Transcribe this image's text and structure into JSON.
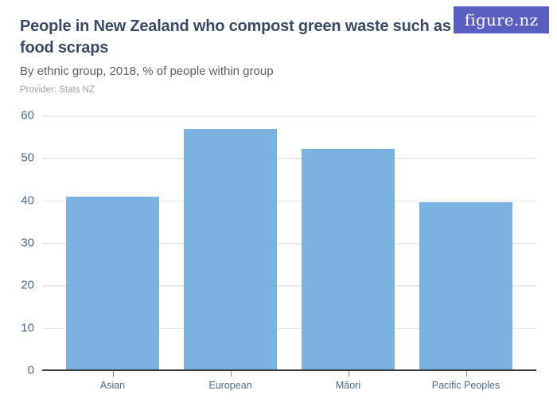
{
  "header": {
    "title": "People in New Zealand who compost green waste such as food scraps",
    "subtitle": "By ethnic group, 2018, % of people within group",
    "provider": "Provider: Stats NZ",
    "logo_text": "figure.nz"
  },
  "colors": {
    "bar": "#7cb2e1",
    "logo_bg": "#5a5ec1",
    "title": "#3b4a63",
    "subtitle": "#5f5f5f",
    "provider": "#a0a0a0",
    "axis_label": "#4a6a8c",
    "gridline": "#e9e9e9",
    "axis_line": "#3d3d3d"
  },
  "chart_data": {
    "type": "bar",
    "title": "People in New Zealand who compost green waste such as food scraps",
    "subtitle": "By ethnic group, 2018, % of people within group",
    "categories": [
      "Asian",
      "European",
      "Māori",
      "Pacific Peoples"
    ],
    "values": [
      40.9,
      56.9,
      52.1,
      39.6
    ],
    "xlabel": "",
    "ylabel": "% of people within group",
    "ylim": [
      0,
      60
    ],
    "yticks": [
      0,
      10,
      20,
      30,
      40,
      50,
      60
    ],
    "grid": true,
    "legend": false,
    "bar_color": "#7cb2e1"
  }
}
